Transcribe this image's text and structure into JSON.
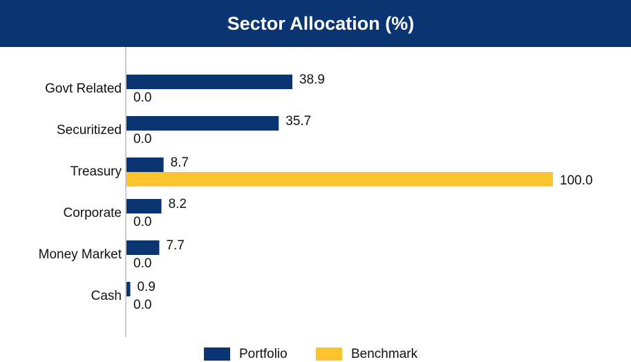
{
  "chart_data": {
    "type": "hbar",
    "title": "Sector Allocation (%)",
    "categories": [
      "Govt Related",
      "Securitized",
      "Treasury",
      "Corporate",
      "Money Market",
      "Cash"
    ],
    "series": [
      {
        "name": "Portfolio",
        "color": "#0b3472",
        "values": [
          38.9,
          35.7,
          8.7,
          8.2,
          7.7,
          0.9
        ],
        "value_labels": [
          "38.9",
          "35.7",
          "8.7",
          "8.2",
          "7.7",
          "0.9"
        ]
      },
      {
        "name": "Benchmark",
        "color": "#fdc42b",
        "values": [
          0,
          0,
          100,
          0,
          0,
          0
        ],
        "value_labels": [
          "0.0",
          "0.0",
          "100.0",
          "0.0",
          "0.0",
          "0.0"
        ]
      }
    ],
    "xlim": [
      0,
      100
    ],
    "legend": "bottom"
  }
}
